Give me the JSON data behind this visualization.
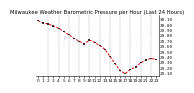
{
  "title": "Milwaukee Weather Barometric Pressure per Hour (Last 24 Hours)",
  "hours": [
    0,
    1,
    2,
    3,
    4,
    5,
    6,
    7,
    8,
    9,
    10,
    11,
    12,
    13,
    14,
    15,
    16,
    17,
    18,
    19,
    20,
    21,
    22,
    23
  ],
  "pressure": [
    30.08,
    30.04,
    30.02,
    29.98,
    29.94,
    29.88,
    29.82,
    29.75,
    29.7,
    29.65,
    29.72,
    29.68,
    29.62,
    29.55,
    29.42,
    29.28,
    29.15,
    29.1,
    29.18,
    29.22,
    29.3,
    29.35,
    29.38,
    29.36
  ],
  "ytick_vals": [
    29.1,
    29.2,
    29.3,
    29.4,
    29.5,
    29.6,
    29.7,
    29.8,
    29.9,
    30.0,
    30.1
  ],
  "ytick_labels": [
    "29.10",
    "29.20",
    "29.30",
    "29.40",
    "29.50",
    "29.60",
    "29.70",
    "29.80",
    "29.90",
    "30.00",
    "30.10"
  ],
  "ylim": [
    29.05,
    30.18
  ],
  "xlim": [
    -0.5,
    23.5
  ],
  "bg_color": "#ffffff",
  "line_color": "#dd0000",
  "point_color": "#111111",
  "grid_color": "#888888",
  "title_color": "#000000",
  "title_fontsize": 3.8,
  "tick_fontsize": 3.2,
  "grid_hours": [
    2,
    4,
    6,
    8,
    10,
    12,
    14,
    16,
    18,
    20,
    22
  ],
  "xtick_labels": [
    "0",
    "1",
    "2",
    "3",
    "4",
    "5",
    "6",
    "7",
    "8",
    "9",
    "10",
    "11",
    "12",
    "13",
    "14",
    "15",
    "16",
    "17",
    "18",
    "19",
    "20",
    "21",
    "22",
    "23"
  ]
}
